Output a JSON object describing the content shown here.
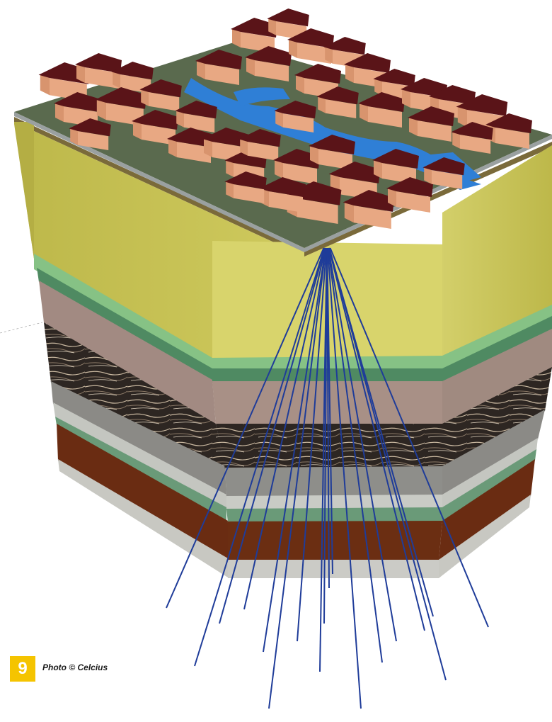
{
  "figure": {
    "number": "9",
    "credit": "Photo © Celcius"
  },
  "colors": {
    "yellow_layer": "#c9c55a",
    "green_band": "#6fb27a",
    "mauve_layer": "#a89086",
    "rock_layer": "#3c3530",
    "grey_layer": "#8a8a86",
    "brown_layer": "#6b2e12",
    "base_layer": "#c9c9c4",
    "roof": "#5a1418",
    "wall": "#e8a883",
    "water": "#2f7fd6",
    "borehole": "#1f3c99",
    "badge": "#f5c400"
  },
  "scene_elements": {
    "houses": "cluster-of-houses",
    "water": "canals",
    "boreholes": 18
  }
}
